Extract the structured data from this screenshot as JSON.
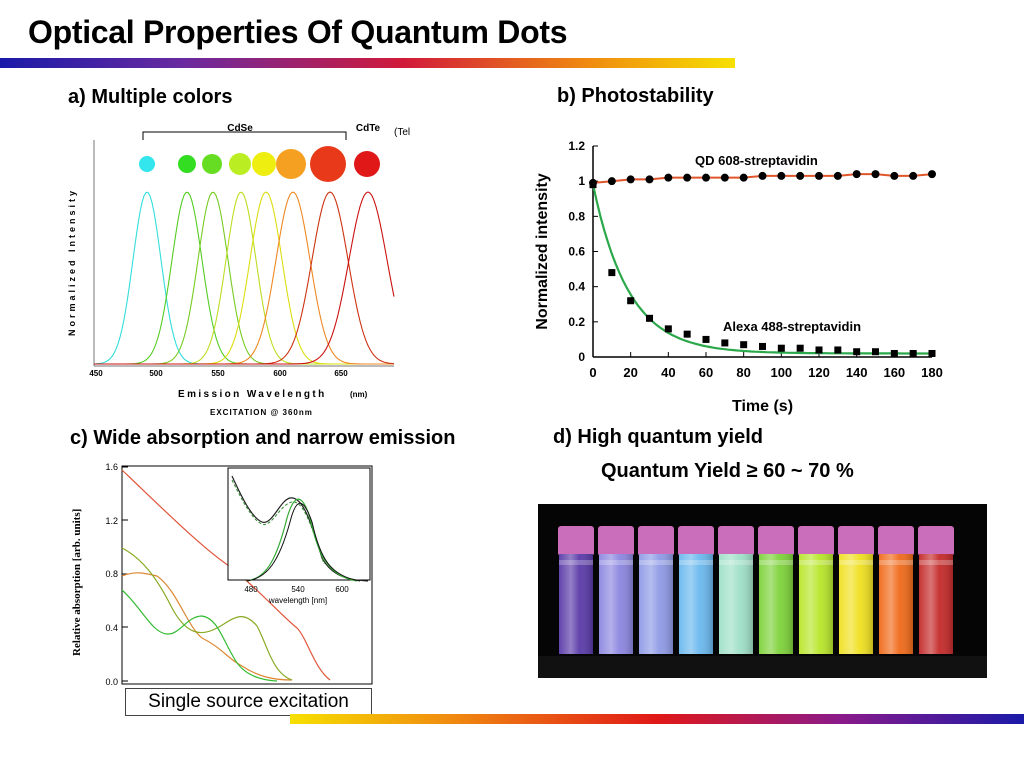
{
  "slide": {
    "title": "Optical Properties Of Quantum Dots",
    "caption_a": "a) Multiple colors",
    "caption_b": "b) Photostability",
    "caption_c": "c) Wide absorption and narrow emission",
    "caption_d": "d) High quantum yield",
    "quantum_yield_text": "Quantum Yield ≥ 60 ~ 70 %",
    "single_source_text": "Single source excitation"
  },
  "panel_a": {
    "cdse_label": "CdSe",
    "cdte_label": "CdTe",
    "tellurium_note": "(Tellurium)",
    "xlabel": "Emission Wavelength",
    "xunit": "(nm)",
    "ylabel": "Normalized Intensity",
    "excitation_note": "EXCITATION @ 360nm",
    "x_ticks": [
      "450",
      "500",
      "550",
      "600",
      "650"
    ],
    "dot_colors": [
      "#33e6ee",
      "#33dd22",
      "#66dd22",
      "#bbee22",
      "#eeee11",
      "#f5a020",
      "#e83a1a",
      "#e01818"
    ],
    "peak_colors": [
      "#33dddd",
      "#55cc22",
      "#77cc22",
      "#bbdd22",
      "#dddd11",
      "#ee8822",
      "#cc3311",
      "#cc1111"
    ]
  },
  "panel_c_text": {
    "ylabel": "Relative absorption [arb. units]",
    "inset_xlabel": "wavelength [nm]",
    "y_ticks": [
      "0.0",
      "0.4",
      "0.8",
      "1.2",
      "1.6"
    ],
    "inset_x_ticks": [
      "480",
      "540",
      "600"
    ]
  },
  "chart_data": [
    {
      "type": "line",
      "title": "",
      "xlabel": "Time (s)",
      "ylabel": "Normalized intensity",
      "xlim": [
        0,
        180
      ],
      "ylim": [
        0,
        1.2
      ],
      "x_ticks": [
        0,
        20,
        40,
        60,
        80,
        100,
        120,
        140,
        160,
        180
      ],
      "y_ticks": [
        0,
        0.2,
        0.4,
        0.6,
        0.8,
        1,
        1.2
      ],
      "grid": false,
      "series": [
        {
          "name": "QD 608-streptavidin",
          "color": "#e0552a",
          "marker": "circle",
          "x": [
            0,
            10,
            20,
            30,
            40,
            50,
            60,
            70,
            80,
            90,
            100,
            110,
            120,
            130,
            140,
            150,
            160,
            170,
            180
          ],
          "y": [
            0.99,
            1.0,
            1.01,
            1.01,
            1.02,
            1.02,
            1.02,
            1.02,
            1.02,
            1.03,
            1.03,
            1.03,
            1.03,
            1.03,
            1.04,
            1.04,
            1.03,
            1.03,
            1.04
          ]
        },
        {
          "name": "Alexa 488-streptavidin",
          "color": "#2aa84a",
          "marker": "square",
          "x": [
            0,
            10,
            20,
            30,
            40,
            50,
            60,
            70,
            80,
            90,
            100,
            110,
            120,
            130,
            140,
            150,
            160,
            170,
            180
          ],
          "y": [
            0.98,
            0.48,
            0.32,
            0.22,
            0.16,
            0.13,
            0.1,
            0.08,
            0.07,
            0.06,
            0.05,
            0.05,
            0.04,
            0.04,
            0.03,
            0.03,
            0.02,
            0.02,
            0.02
          ]
        }
      ]
    }
  ],
  "colors": {
    "title_bar_start": "#1a1aa8",
    "title_bar_end": "#f6e000"
  }
}
